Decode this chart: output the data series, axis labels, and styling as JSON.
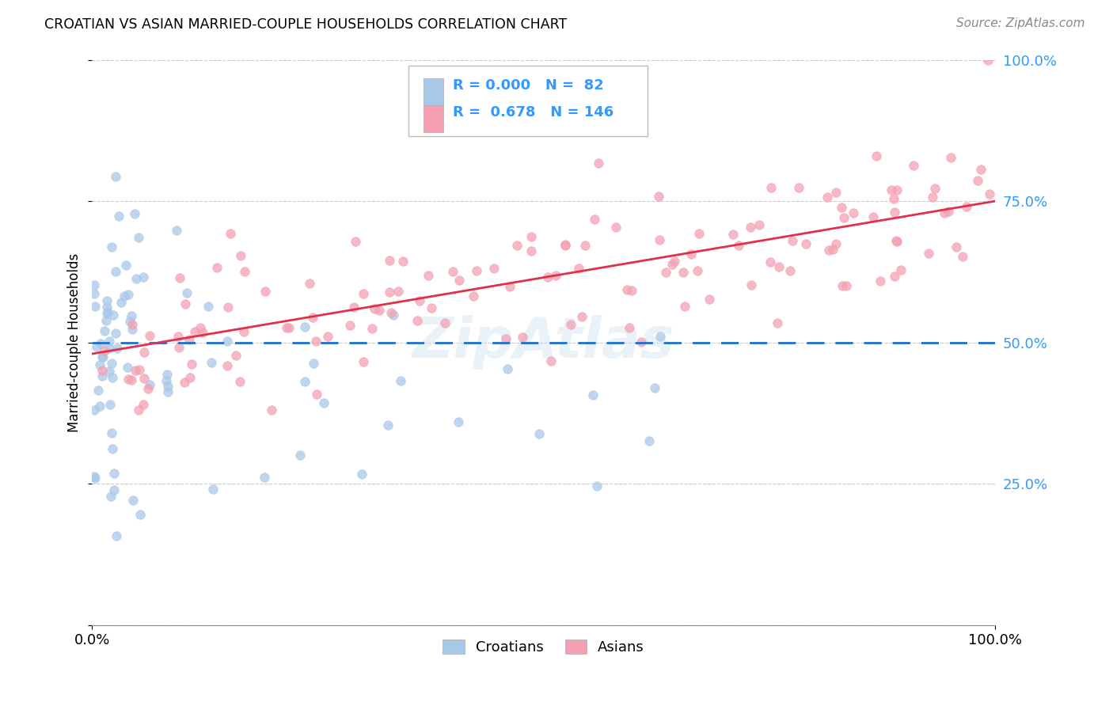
{
  "title": "CROATIAN VS ASIAN MARRIED-COUPLE HOUSEHOLDS CORRELATION CHART",
  "source": "Source: ZipAtlas.com",
  "ylabel": "Married-couple Households",
  "background_color": "#ffffff",
  "grid_color": "#cccccc",
  "croatian_color": "#a8c8e8",
  "asian_color": "#f4a0b0",
  "croatian_line_color": "#1e6fcc",
  "asian_line_color": "#e0304a",
  "right_tick_color": "#3399ff",
  "ytick_vals": [
    0.0,
    0.25,
    0.5,
    0.75,
    1.0
  ],
  "ytick_labels_right": [
    "",
    "25.0%",
    "50.0%",
    "75.0%",
    "100.0%"
  ],
  "xtick_vals": [
    0.0,
    1.0
  ],
  "xtick_labels": [
    "0.0%",
    "100.0%"
  ],
  "xlim": [
    0,
    1
  ],
  "ylim": [
    0,
    1
  ],
  "legend_r1": "R = 0.000",
  "legend_n1": "N =  82",
  "legend_r2": "R =  0.678",
  "legend_n2": "N = 146",
  "watermark": "ZipAtlas",
  "bottom_legend_labels": [
    "Croatians",
    "Asians"
  ]
}
